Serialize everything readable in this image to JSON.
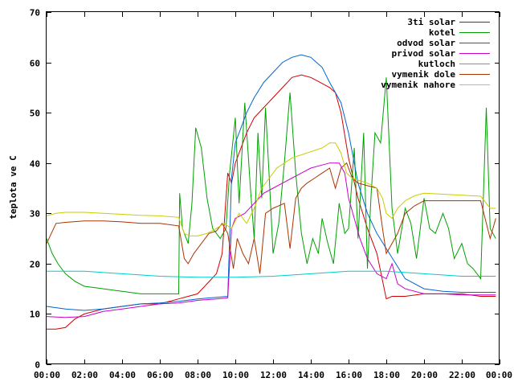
{
  "chart_data": {
    "type": "line",
    "title": "",
    "xlabel": "",
    "ylabel": "teplota ve C",
    "xlim": [
      0,
      24
    ],
    "ylim": [
      0,
      70
    ],
    "yticks": [
      0,
      10,
      20,
      30,
      40,
      50,
      60,
      70
    ],
    "xticks": [
      0,
      2,
      4,
      6,
      8,
      10,
      12,
      14,
      16,
      18,
      20,
      22,
      24
    ],
    "xtick_labels": [
      "00:00",
      "02:00",
      "04:00",
      "06:00",
      "08:00",
      "10:00",
      "12:00",
      "14:00",
      "16:00",
      "18:00",
      "20:00",
      "22:00",
      "00:00"
    ],
    "grid": false,
    "legend_position": "top-right",
    "series": [
      {
        "name": "3ti solar",
        "color": "#d10000",
        "x": [
          0,
          0.5,
          1,
          1.5,
          2,
          3,
          4,
          5,
          6,
          7,
          7.5,
          8,
          8.5,
          9,
          9.3,
          9.6,
          9.8,
          10,
          10.3,
          10.6,
          11,
          11.5,
          12,
          12.5,
          13,
          13.5,
          14,
          14.5,
          15,
          15.3,
          15.6,
          16,
          16.5,
          17,
          17.5,
          18,
          18.3,
          19,
          20,
          21,
          22,
          23,
          23.8
        ],
        "y": [
          7,
          7,
          7.3,
          9,
          10,
          11,
          11.5,
          12,
          12,
          13,
          13.5,
          14,
          16,
          18,
          22,
          38,
          36,
          40,
          43,
          46,
          49,
          51,
          53,
          55,
          57,
          57.5,
          57,
          56,
          55,
          54,
          50,
          41,
          33,
          27,
          22,
          13,
          13.5,
          13.5,
          14,
          14,
          14,
          13.5,
          13.5
        ]
      },
      {
        "name": "kotel",
        "color": "#00a000",
        "x": [
          0,
          0.3,
          0.6,
          1,
          1.5,
          2,
          3,
          4,
          5,
          6,
          7,
          7.05,
          7.2,
          7.5,
          7.7,
          7.9,
          8.2,
          8.5,
          8.8,
          9.2,
          9.5,
          9.7,
          10,
          10.2,
          10.5,
          10.8,
          11,
          11.2,
          11.4,
          11.6,
          11.8,
          12,
          12.3,
          12.6,
          12.9,
          13.2,
          13.5,
          13.8,
          14.1,
          14.4,
          14.6,
          14.9,
          15.2,
          15.5,
          15.8,
          16,
          16.3,
          16.5,
          16.8,
          17,
          17.2,
          17.4,
          17.7,
          18,
          18.3,
          18.6,
          19,
          19.3,
          19.6,
          20,
          20.3,
          20.6,
          21,
          21.3,
          21.6,
          22,
          22.3,
          22.6,
          23,
          23.3,
          23.5,
          23.8
        ],
        "y": [
          25,
          22,
          20,
          18,
          16.5,
          15.5,
          15,
          14.5,
          14,
          14,
          14,
          34,
          27,
          24,
          32,
          47,
          43,
          33,
          27,
          25,
          27,
          38,
          49,
          32,
          52,
          35,
          25,
          46,
          33,
          51,
          37,
          22,
          28,
          40,
          54,
          38,
          26,
          20,
          25,
          22,
          29,
          24,
          20,
          32,
          26,
          27,
          43,
          25,
          46,
          19,
          34,
          46,
          44,
          57,
          31,
          22,
          31,
          28,
          21,
          33,
          27,
          26,
          30,
          27,
          21,
          24,
          20,
          19,
          17,
          51,
          27,
          25
        ]
      },
      {
        "name": "odvod solar",
        "color": "#0066cc",
        "x": [
          0,
          1,
          2,
          3,
          4,
          5,
          6,
          7,
          8,
          9,
          9.6,
          9.8,
          10,
          10.3,
          10.6,
          11,
          11.5,
          12,
          12.5,
          13,
          13.5,
          14,
          14.3,
          14.6,
          15,
          15.3,
          15.6,
          16,
          16.5,
          17,
          17.5,
          18,
          18.5,
          19,
          20,
          21,
          22,
          23,
          23.8
        ],
        "y": [
          11.5,
          11,
          10.7,
          11,
          11.5,
          12,
          12.2,
          12.5,
          13,
          13.3,
          13.5,
          37,
          44,
          47,
          50,
          53,
          56,
          58,
          60,
          61,
          61.5,
          61,
          60,
          59,
          56,
          54,
          52,
          46,
          36,
          30,
          26,
          23,
          20,
          17,
          15,
          14.5,
          14.3,
          14.3,
          14.3
        ]
      },
      {
        "name": "privod solar",
        "color": "#cc00cc",
        "x": [
          0,
          1,
          2,
          3,
          4,
          5,
          6,
          7,
          8,
          9,
          9.6,
          9.8,
          10,
          10.5,
          11,
          11.5,
          12,
          12.5,
          13,
          13.5,
          14,
          14.5,
          15,
          15.5,
          15.8,
          16,
          16.3,
          16.6,
          17,
          17.5,
          18,
          18.3,
          18.6,
          19,
          20,
          21,
          22,
          23,
          23.8
        ],
        "y": [
          9.5,
          9.3,
          9.5,
          10.5,
          11,
          11.5,
          12,
          12.2,
          12.7,
          13,
          13.2,
          27,
          29,
          30,
          32,
          34,
          35,
          36,
          37,
          38,
          39,
          39.5,
          40,
          40,
          38,
          33,
          29,
          25,
          21,
          18,
          17,
          20,
          16,
          15,
          14,
          14,
          13.8,
          13.8,
          13.8
        ]
      },
      {
        "name": "kutloch",
        "color": "#00cccc",
        "x": [
          0,
          2,
          4,
          6,
          8,
          10,
          12,
          14,
          16,
          17,
          18,
          20,
          22,
          23.8
        ],
        "y": [
          18.5,
          18.5,
          18,
          17.5,
          17.3,
          17.3,
          17.5,
          18,
          18.5,
          18.5,
          18.5,
          18,
          17.5,
          17.5
        ]
      },
      {
        "name": "vymenik dole",
        "color": "#aa3300",
        "x": [
          0,
          0.5,
          1,
          2,
          3,
          4,
          5,
          6,
          7,
          7.3,
          7.5,
          7.8,
          8.2,
          8.6,
          9,
          9.3,
          9.6,
          9.9,
          10.1,
          10.4,
          10.7,
          11,
          11.3,
          11.6,
          12,
          12.3,
          12.6,
          12.9,
          13.2,
          13.5,
          13.8,
          14.2,
          14.6,
          15,
          15.3,
          15.6,
          15.9,
          16.2,
          16.5,
          17,
          17.5,
          17.8,
          18,
          18.3,
          18.6,
          19,
          19.5,
          20,
          21,
          22,
          23,
          23.5,
          23.8
        ],
        "y": [
          24,
          28,
          28.2,
          28.5,
          28.5,
          28.3,
          28,
          28,
          27.5,
          21,
          20,
          22,
          24,
          26,
          26.5,
          28,
          26,
          19,
          25,
          22,
          20,
          25,
          18,
          30,
          31,
          31.5,
          32,
          23,
          33,
          35,
          36,
          37,
          38,
          39,
          35,
          39,
          40,
          37,
          36,
          35.5,
          35,
          27,
          22,
          24,
          26,
          30,
          31.5,
          32.5,
          32.5,
          32.5,
          32.5,
          25,
          29
        ]
      },
      {
        "name": "vymenik nahore",
        "color": "#cccc00",
        "x": [
          0,
          0.5,
          1,
          2,
          3,
          4,
          5,
          6,
          7,
          7.3,
          7.6,
          8,
          8.5,
          9,
          9.4,
          9.8,
          10.2,
          10.6,
          11,
          11.4,
          11.8,
          12.2,
          12.6,
          13,
          13.4,
          13.8,
          14.2,
          14.6,
          15,
          15.3,
          15.6,
          15.9,
          16.2,
          16.6,
          17,
          17.5,
          17.8,
          18,
          18.3,
          18.6,
          19,
          19.5,
          20,
          21,
          22,
          23,
          23.5,
          23.8
        ],
        "y": [
          29.5,
          30,
          30.2,
          30.2,
          30,
          29.8,
          29.6,
          29.5,
          29.2,
          26,
          25.5,
          25.5,
          26,
          27,
          28,
          27,
          30,
          28,
          31,
          35,
          37,
          39,
          40,
          41,
          41.5,
          42,
          42.5,
          43,
          44,
          44,
          42,
          38,
          37,
          36.5,
          36,
          35,
          33,
          30,
          29,
          31,
          32.5,
          33.5,
          34,
          33.8,
          33.6,
          33.4,
          31,
          31
        ]
      }
    ]
  }
}
